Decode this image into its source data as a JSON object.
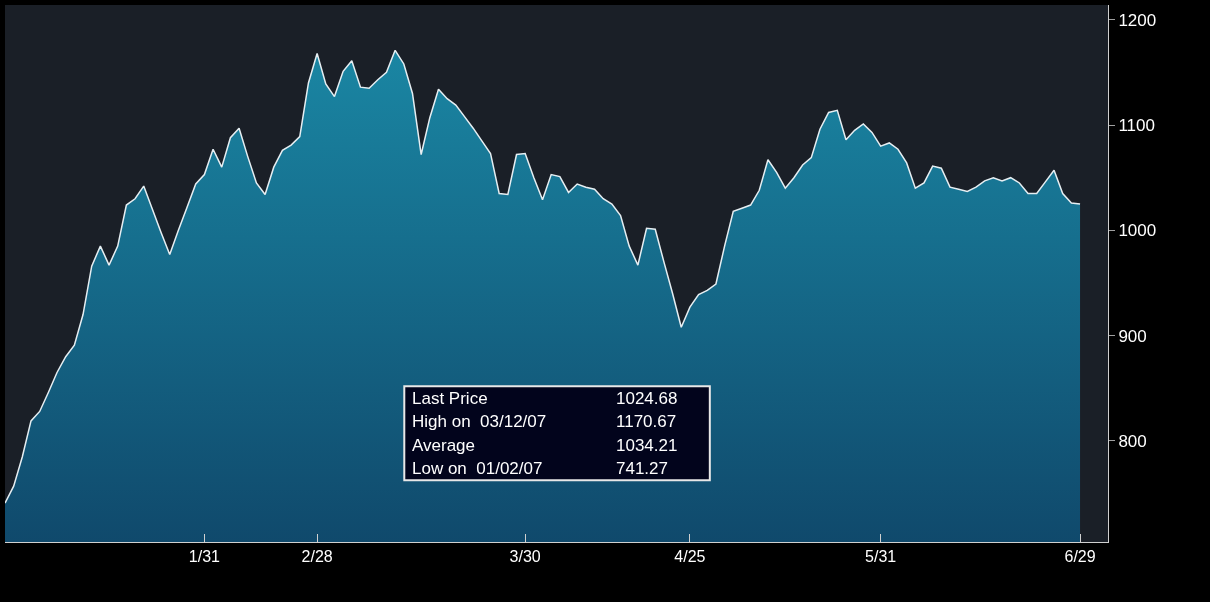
{
  "chart_data": {
    "type": "area",
    "categories": [
      null,
      null,
      null,
      null,
      null,
      null,
      null,
      null,
      null,
      null,
      null,
      null,
      null,
      null,
      null,
      null,
      null,
      null,
      null,
      null,
      null,
      null,
      null,
      "1/31",
      null,
      null,
      null,
      null,
      null,
      null,
      null,
      null,
      null,
      null,
      null,
      null,
      "2/28",
      null,
      null,
      null,
      null,
      null,
      null,
      null,
      null,
      null,
      null,
      null,
      null,
      null,
      null,
      null,
      null,
      null,
      null,
      null,
      null,
      null,
      null,
      null,
      "3/30",
      null,
      null,
      null,
      null,
      null,
      null,
      null,
      null,
      null,
      null,
      null,
      null,
      null,
      null,
      null,
      null,
      null,
      null,
      "4/25",
      null,
      null,
      null,
      null,
      null,
      null,
      null,
      null,
      null,
      null,
      null,
      null,
      null,
      null,
      null,
      null,
      null,
      null,
      null,
      null,
      null,
      "5/31",
      null,
      null,
      null,
      null,
      null,
      null,
      null,
      null,
      null,
      null,
      null,
      null,
      null,
      null,
      null,
      null,
      null,
      null,
      null,
      null,
      null,
      null,
      "6/29"
    ],
    "series": [
      {
        "color": "#e6eef2",
        "values": [
          741,
          757,
          785,
          819,
          828,
          846,
          865,
          880,
          891,
          920,
          966,
          985,
          967,
          985,
          1024,
          1030,
          1042,
          1020,
          998,
          977,
          1000,
          1022,
          1044,
          1053,
          1077,
          1060,
          1088,
          1097,
          1070,
          1045,
          1034,
          1060,
          1076,
          1081,
          1089,
          1140,
          1168,
          1139,
          1127,
          1151,
          1161,
          1136,
          1135,
          1143,
          1150,
          1171,
          1158,
          1130,
          1072,
          1107,
          1134,
          1125,
          1119,
          1108,
          1097,
          1085,
          1073,
          1035,
          1034,
          1072,
          1073,
          1050,
          1029,
          1053,
          1051,
          1036,
          1044,
          1041,
          1039,
          1030,
          1025,
          1014,
          985,
          967,
          1002,
          1001,
          970,
          940,
          908,
          927,
          939,
          943,
          949,
          985,
          1018,
          1021,
          1024,
          1038,
          1067,
          1055,
          1040,
          1050,
          1062,
          1069,
          1096,
          1112,
          1114,
          1086,
          1095,
          1101,
          1093,
          1080,
          1083,
          1077,
          1064,
          1040,
          1045,
          1061,
          1059,
          1041,
          1039,
          1037,
          1041,
          1047,
          1050,
          1047,
          1050,
          1045,
          1035,
          1035,
          1046,
          1057,
          1035,
          1026,
          1025
        ]
      }
    ],
    "ylim": [
      704,
      1214
    ],
    "yticks": [
      800,
      900,
      1000,
      1100,
      1200
    ],
    "annotations": [
      "Last Price",
      "1024.68",
      "High on  03/12/07",
      "1170.67",
      "Average",
      "1034.21",
      "Low on  01/02/07",
      "741.27"
    ],
    "grid": false
  }
}
